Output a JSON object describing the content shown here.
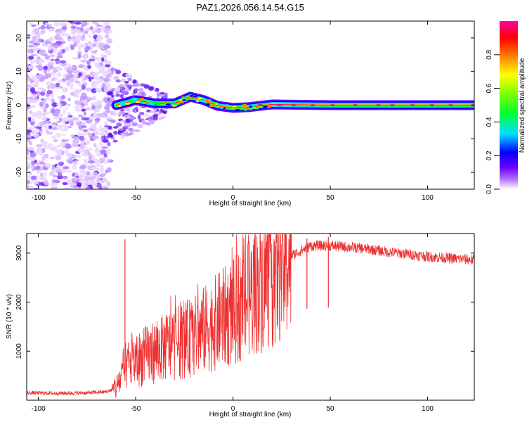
{
  "title": "PAZ1.2026.056.14.54.G15",
  "chart_data": [
    {
      "type": "heatmap",
      "xlabel": "Height of straight line (km)",
      "ylabel": "Frequency (Hz)",
      "xlim": [
        -106,
        124
      ],
      "ylim": [
        -25,
        25
      ],
      "xticks": [
        -100,
        -50,
        0,
        50,
        100
      ],
      "yticks": [
        -20,
        -10,
        0,
        10,
        20
      ],
      "x_centerline": [
        -60,
        -50,
        -40,
        -30,
        -22,
        -15,
        -8,
        0,
        8,
        20,
        50,
        124
      ],
      "y_centerline": [
        0,
        1.5,
        0.5,
        0.5,
        2.5,
        1.5,
        -0.2,
        -0.8,
        -0.6,
        0.2,
        0,
        0
      ],
      "colorbar": {
        "label": "Normalized spectral amplitude",
        "range": [
          0,
          1
        ],
        "ticks": [
          "0.0",
          "0.2",
          "0.4",
          "0.6",
          "0.8"
        ],
        "colors": [
          "#ffffff",
          "#6a00ff",
          "#0000ff",
          "#00e0ff",
          "#00ff00",
          "#ffff00",
          "#ff8000",
          "#ff0000",
          "#ff00a0"
        ]
      }
    },
    {
      "type": "line",
      "xlabel": "Height of straight line (km)",
      "ylabel": "SNR (10 * v/v)",
      "xlim": [
        -106,
        124
      ],
      "ylim": [
        0,
        3400
      ],
      "xticks": [
        -100,
        -50,
        0,
        50,
        100
      ],
      "yticks": [
        1000,
        2000,
        3000
      ],
      "color": "#ee3030",
      "x": [
        -106,
        -90,
        -75,
        -65,
        -60,
        -55,
        -50,
        -40,
        -30,
        -20,
        -10,
        0,
        10,
        20,
        30,
        40,
        50,
        60,
        70,
        80,
        90,
        100,
        110,
        124
      ],
      "y": [
        150,
        140,
        150,
        170,
        250,
        700,
        800,
        1000,
        1150,
        1300,
        1550,
        1800,
        2200,
        2600,
        2950,
        3150,
        3150,
        3120,
        3080,
        3020,
        2980,
        2930,
        2900,
        2860
      ],
      "spikes": [
        {
          "x": -55.5,
          "y": 3280
        },
        {
          "x": 16,
          "y": 3270
        },
        {
          "x": 38,
          "y": 3300
        },
        {
          "x": 49,
          "y": 3330
        }
      ]
    }
  ]
}
